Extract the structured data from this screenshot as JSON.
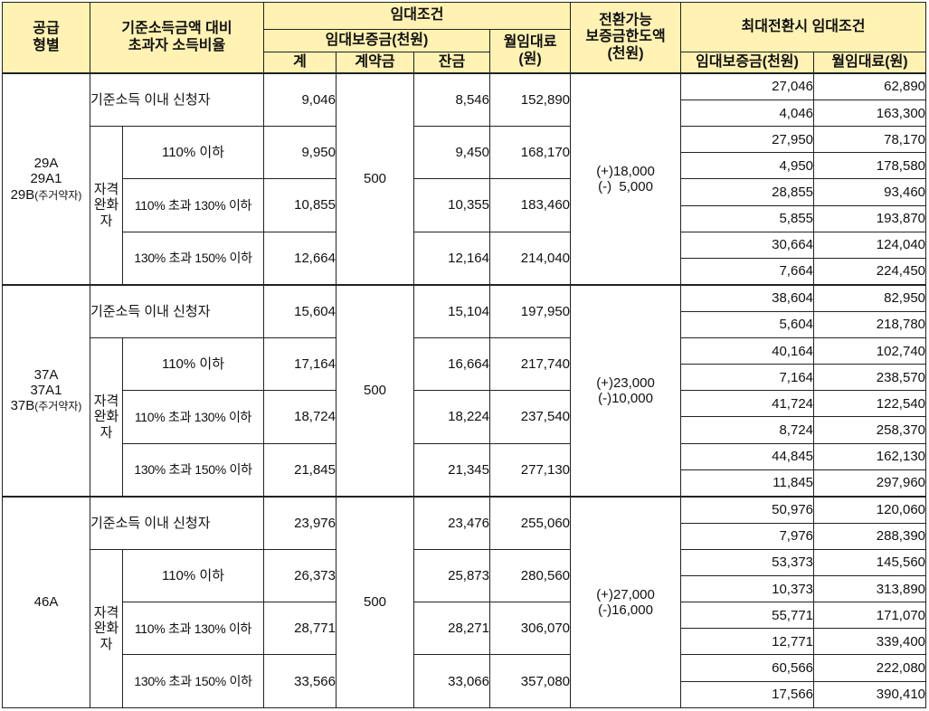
{
  "headers": {
    "supply_type": "공급\n형별",
    "income_ratio": "기준소득금액 대비\n초과자 소득비율",
    "rent_conditions": "임대조건",
    "deposit": "임대보증금(천원)",
    "deposit_total": "계",
    "deposit_contract": "계약금",
    "deposit_balance": "잔금",
    "monthly_rent": "월임대료\n(원)",
    "convertible_limit": "전환가능\n보증금한도액\n(천원)",
    "max_conversion": "최대전환시 임대조건",
    "max_deposit": "임대보증금(천원)",
    "max_monthly": "월임대료(원)"
  },
  "labels": {
    "within_income": "기준소득 이내 신청자",
    "qualified_relaxed": "자격완화자",
    "tier1": "110% 이하",
    "tier2": "110% 초과 130% 이하",
    "tier3": "130% 초과 150% 이하"
  },
  "groups": [
    {
      "type_lines": [
        "29A",
        "29A1"
      ],
      "type_last": "29B",
      "type_suffix": "(주거약자)",
      "contract": "500",
      "convertible": "(+)18,000\n(-)  5,000",
      "rows": [
        {
          "total": "9,046",
          "balance": "8,546",
          "monthly": "152,890",
          "max": [
            [
              "27,046",
              "62,890"
            ],
            [
              "4,046",
              "163,300"
            ]
          ]
        },
        {
          "total": "9,950",
          "balance": "9,450",
          "monthly": "168,170",
          "max": [
            [
              "27,950",
              "78,170"
            ],
            [
              "4,950",
              "178,580"
            ]
          ]
        },
        {
          "total": "10,855",
          "balance": "10,355",
          "monthly": "183,460",
          "max": [
            [
              "28,855",
              "93,460"
            ],
            [
              "5,855",
              "193,870"
            ]
          ]
        },
        {
          "total": "12,664",
          "balance": "12,164",
          "monthly": "214,040",
          "max": [
            [
              "30,664",
              "124,040"
            ],
            [
              "7,664",
              "224,450"
            ]
          ]
        }
      ]
    },
    {
      "type_lines": [
        "37A",
        "37A1"
      ],
      "type_last": "37B",
      "type_suffix": "(주거약자)",
      "contract": "500",
      "convertible": "(+)23,000\n(-)10,000",
      "rows": [
        {
          "total": "15,604",
          "balance": "15,104",
          "monthly": "197,950",
          "max": [
            [
              "38,604",
              "82,950"
            ],
            [
              "5,604",
              "218,780"
            ]
          ]
        },
        {
          "total": "17,164",
          "balance": "16,664",
          "monthly": "217,740",
          "max": [
            [
              "40,164",
              "102,740"
            ],
            [
              "7,164",
              "238,570"
            ]
          ]
        },
        {
          "total": "18,724",
          "balance": "18,224",
          "monthly": "237,540",
          "max": [
            [
              "41,724",
              "122,540"
            ],
            [
              "8,724",
              "258,370"
            ]
          ]
        },
        {
          "total": "21,845",
          "balance": "21,345",
          "monthly": "277,130",
          "max": [
            [
              "44,845",
              "162,130"
            ],
            [
              "11,845",
              "297,960"
            ]
          ]
        }
      ]
    },
    {
      "type_lines": [],
      "type_last": "46A",
      "type_suffix": "",
      "contract": "500",
      "convertible": "(+)27,000\n(-)16,000",
      "rows": [
        {
          "total": "23,976",
          "balance": "23,476",
          "monthly": "255,060",
          "max": [
            [
              "50,976",
              "120,060"
            ],
            [
              "7,976",
              "288,390"
            ]
          ]
        },
        {
          "total": "26,373",
          "balance": "25,873",
          "monthly": "280,560",
          "max": [
            [
              "53,373",
              "145,560"
            ],
            [
              "10,373",
              "313,890"
            ]
          ]
        },
        {
          "total": "28,771",
          "balance": "28,271",
          "monthly": "306,070",
          "max": [
            [
              "55,771",
              "171,070"
            ],
            [
              "12,771",
              "339,400"
            ]
          ]
        },
        {
          "total": "33,566",
          "balance": "33,066",
          "monthly": "357,080",
          "max": [
            [
              "60,566",
              "222,080"
            ],
            [
              "17,566",
              "390,410"
            ]
          ]
        }
      ]
    }
  ]
}
